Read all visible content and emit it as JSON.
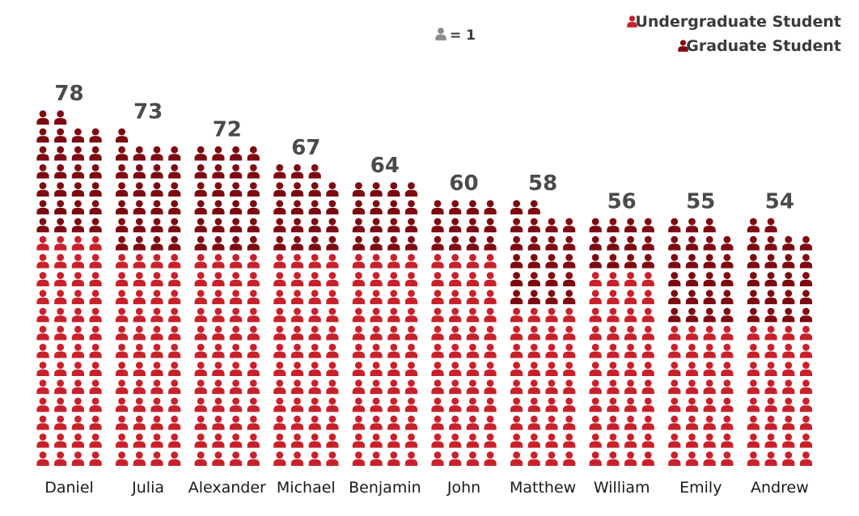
{
  "chart_data": {
    "type": "pictogram",
    "unit_key": {
      "label": "= 1",
      "icon": "person-icon",
      "color": "#8a8a8a"
    },
    "series": [
      {
        "name": "Undergraduate Student",
        "color": "#c9212b",
        "icon": "person-icon"
      },
      {
        "name": "Graduate Student",
        "color": "#7d0a10",
        "icon": "person-icon"
      }
    ],
    "legend_position": "top-right",
    "categories": [
      "Daniel",
      "Julia",
      "Alexander",
      "Michael",
      "Benjamin",
      "John",
      "Matthew",
      "William",
      "Emily",
      "Andrew"
    ],
    "totals": [
      78,
      73,
      72,
      67,
      64,
      60,
      58,
      56,
      55,
      54
    ],
    "undergraduate": [
      52,
      48,
      48,
      48,
      48,
      48,
      36,
      44,
      32,
      32
    ],
    "graduate": [
      26,
      25,
      24,
      19,
      16,
      12,
      22,
      12,
      23,
      22
    ]
  }
}
